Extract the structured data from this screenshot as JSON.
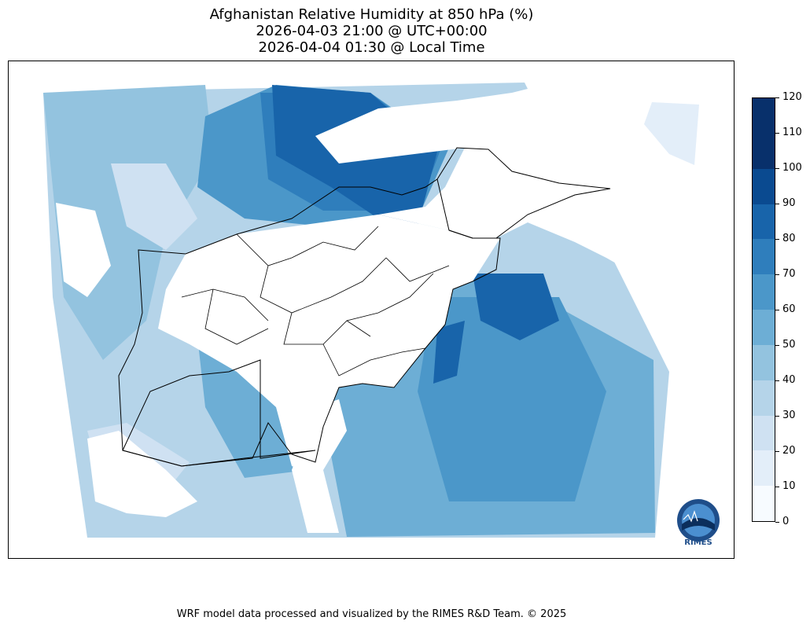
{
  "title": {
    "line1": "Afghanistan Relative Humidity at 850 hPa (%)",
    "line2": "2026-04-03 21:00 @ UTC+00:00",
    "line3": "2026-04-04 01:30 @ Local Time"
  },
  "colorbar": {
    "ticks": [
      "0",
      "10",
      "20",
      "30",
      "40",
      "50",
      "60",
      "70",
      "80",
      "90",
      "100",
      "110",
      "120"
    ],
    "colors": [
      "#f7fbff",
      "#e3eef9",
      "#cfe1f2",
      "#b5d4e9",
      "#93c3df",
      "#6daed5",
      "#4b97c9",
      "#2f7ebc",
      "#1864aa",
      "#0a4a90",
      "#08306b",
      "#08306b"
    ]
  },
  "logo": {
    "text": "RIMES"
  },
  "footer": {
    "credit": "WRF model data processed and visualized by the RIMES R&D Team. © 2025"
  }
}
